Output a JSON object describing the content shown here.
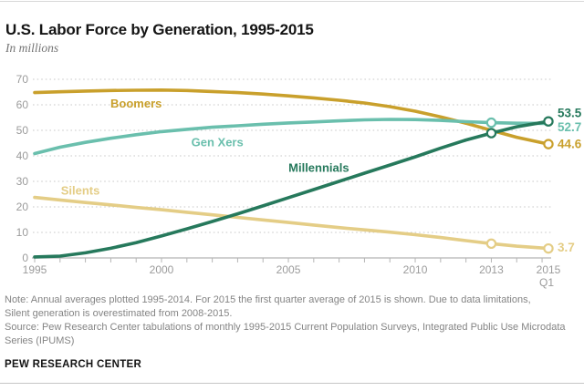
{
  "header": {
    "title": "U.S. Labor Force by Generation, 1995-2015",
    "subtitle": "In millions"
  },
  "footer": {
    "note_lines": [
      "Note: Annual averages plotted 1995-2014. For 2015 the first quarter average of 2015 is shown. Due to data limitations,",
      "Silent generation is overestimated from 2008-2015.",
      "Source: Pew Research Center tabulations of monthly 1995-2015 Current Population Surveys, Integrated Public Use Microdata",
      "Series (IPUMS)"
    ],
    "brand": "PEW RESEARCH CENTER"
  },
  "colors": {
    "grid": "#c9c9c9",
    "axis": "#b5b5b5",
    "tick_label": "#9b9b9b"
  },
  "chart_data": {
    "type": "line",
    "title": "U.S. Labor Force by Generation, 1995-2015",
    "ylabel": "In millions",
    "ylim": [
      0,
      70
    ],
    "yticks": [
      0,
      10,
      20,
      30,
      40,
      50,
      60,
      70
    ],
    "xlim": [
      1995,
      2015.25
    ],
    "xticks": [
      {
        "value": 1995,
        "label": "1995"
      },
      {
        "value": 2000,
        "label": "2000"
      },
      {
        "value": 2005,
        "label": "2005"
      },
      {
        "value": 2010,
        "label": "2010"
      },
      {
        "value": 2013,
        "label": "2013"
      },
      {
        "value": 2015.25,
        "label": "2015",
        "sublabel": "Q1"
      }
    ],
    "grid": "horizontal-dotted",
    "legend_position": "inline-labels",
    "x": [
      1995,
      1996,
      1997,
      1998,
      1999,
      2000,
      2001,
      2002,
      2003,
      2004,
      2005,
      2006,
      2007,
      2008,
      2009,
      2010,
      2011,
      2012,
      2013,
      2014,
      2015.25
    ],
    "series": [
      {
        "name": "Silents",
        "color": "#E4CD86",
        "values": [
          23.7,
          22.7,
          21.7,
          20.8,
          19.8,
          18.9,
          17.9,
          16.9,
          15.9,
          14.9,
          13.9,
          12.9,
          11.9,
          11.0,
          10.1,
          9.1,
          8.0,
          6.8,
          5.6,
          4.6,
          3.7
        ],
        "label": {
          "text": "Silents",
          "x": 1996.8,
          "y": 26.3
        },
        "end_label": {
          "text": "3.7",
          "dy": -1
        },
        "markers": [
          2013,
          2015.25
        ]
      },
      {
        "name": "Boomers",
        "color": "#C9A02C",
        "values": [
          64.8,
          65.1,
          65.4,
          65.6,
          65.7,
          65.8,
          65.6,
          65.2,
          64.8,
          64.2,
          63.5,
          62.7,
          61.8,
          60.7,
          59.3,
          57.5,
          55.3,
          52.8,
          50.0,
          47.3,
          44.6
        ],
        "label": {
          "text": "Boomers",
          "x": 1999.0,
          "y": 60.4
        },
        "end_label": {
          "text": "44.6",
          "dy": 0
        },
        "markers": [
          2015.25
        ]
      },
      {
        "name": "Gen Xers",
        "color": "#6ABFAD",
        "values": [
          40.9,
          43.4,
          45.3,
          46.9,
          48.3,
          49.5,
          50.4,
          51.2,
          51.8,
          52.4,
          52.9,
          53.3,
          53.7,
          54.1,
          54.3,
          54.2,
          53.9,
          53.4,
          53.0,
          52.8,
          52.7
        ],
        "label": {
          "text": "Gen Xers",
          "x": 2002.2,
          "y": 45.2
        },
        "end_label": {
          "text": "52.7",
          "dy": 4
        },
        "markers": [
          2013
        ]
      },
      {
        "name": "Millennials",
        "color": "#26795C",
        "values": [
          0.4,
          0.7,
          2.0,
          3.8,
          6.0,
          8.6,
          11.4,
          14.3,
          17.3,
          20.4,
          23.6,
          26.8,
          30.0,
          33.2,
          36.4,
          39.6,
          43.0,
          46.2,
          48.9,
          51.4,
          53.5
        ],
        "label": {
          "text": "Millennials",
          "x": 2006.2,
          "y": 35.2
        },
        "end_label": {
          "text": "53.5",
          "dy": -9
        },
        "markers": [
          2013,
          2015.25
        ]
      }
    ]
  }
}
